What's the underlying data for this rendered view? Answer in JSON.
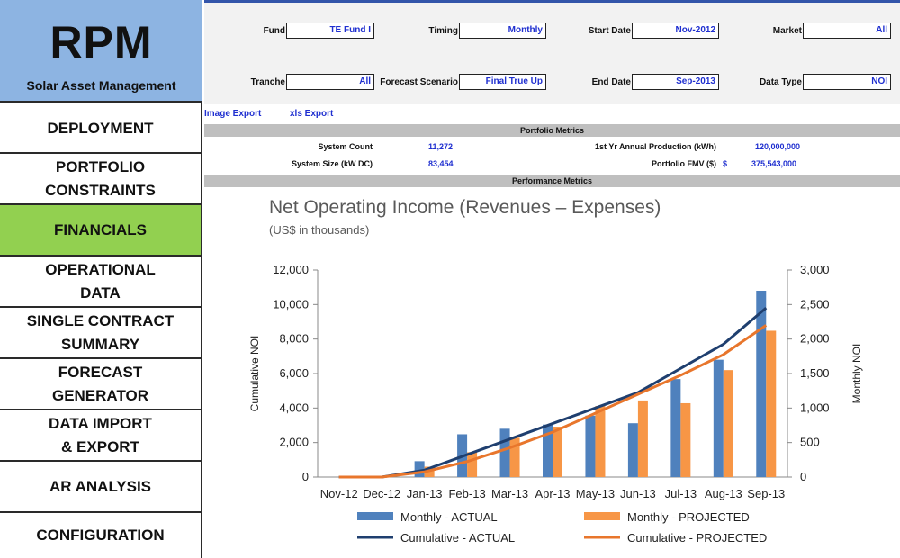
{
  "brand": {
    "title": "RPM",
    "subtitle": "Solar Asset Management"
  },
  "nav": [
    {
      "label": "DEPLOYMENT",
      "active": false
    },
    {
      "label": "PORTFOLIO\nCONSTRAINTS",
      "active": false
    },
    {
      "label": "FINANCIALS",
      "active": true
    },
    {
      "label": "OPERATIONAL\nDATA",
      "active": false
    },
    {
      "label": "SINGLE CONTRACT\nSUMMARY",
      "active": false
    },
    {
      "label": "FORECAST\nGENERATOR",
      "active": false
    },
    {
      "label": "DATA IMPORT\n& EXPORT",
      "active": false
    },
    {
      "label": "AR ANALYSIS",
      "active": false
    },
    {
      "label": "CONFIGURATION",
      "active": false
    }
  ],
  "filters": {
    "fund": {
      "label": "Fund",
      "value": "TE Fund I"
    },
    "timing": {
      "label": "Timing",
      "value": "Monthly"
    },
    "start_date": {
      "label": "Start Date",
      "value": "Nov-2012"
    },
    "market": {
      "label": "Market",
      "value": "All"
    },
    "tranche": {
      "label": "Tranche",
      "value": "All"
    },
    "forecast_scenario": {
      "label": "Forecast Scenario",
      "value": "Final True Up"
    },
    "end_date": {
      "label": "End Date",
      "value": "Sep-2013"
    },
    "data_type": {
      "label": "Data Type",
      "value": "NOI"
    }
  },
  "links": {
    "image_export": "Image Export",
    "xls_export": "xls Export"
  },
  "portfolio_metrics": {
    "header": "Portfolio Metrics",
    "system_count_label": "System Count",
    "system_count": "11,272",
    "system_size_label": "System Size (kW DC)",
    "system_size": "83,454",
    "annual_production_label": "1st Yr Annual Production (kWh)",
    "annual_production": "120,000,000",
    "fmv_label": "Portfolio FMV ($)",
    "fmv_currency": "$",
    "fmv": "375,543,000"
  },
  "performance_metrics": {
    "header": "Performance Metrics"
  },
  "colors": {
    "sidebar_logo": "#8db4e2",
    "active_nav": "#92d050",
    "value_text": "#1f2fd0",
    "actual": "#4f81bd",
    "projected": "#f79646",
    "cumulative_actual": "#1f3f6f",
    "cumulative_projected": "#e8762c"
  },
  "chart_data": {
    "type": "bar",
    "title": "Net Operating Income (Revenues – Expenses)",
    "subtitle": "(US$ in thousands)",
    "categories": [
      "Nov-12",
      "Dec-12",
      "Jan-13",
      "Feb-13",
      "Mar-13",
      "Apr-13",
      "May-13",
      "Jun-13",
      "Jul-13",
      "Aug-13",
      "Sep-13"
    ],
    "ylabel_left": "Cumulative NOI",
    "ylabel_right": "Monthly NOI",
    "ylim_left": [
      0,
      12000
    ],
    "yticks_left": [
      "0",
      "2,000",
      "4,000",
      "6,000",
      "8,000",
      "10,000",
      "12,000"
    ],
    "ylim_right": [
      0,
      3000
    ],
    "yticks_right": [
      "0",
      "500",
      "1,000",
      "1,500",
      "2,000",
      "2,500",
      "3,000"
    ],
    "series": [
      {
        "name": "Monthly - ACTUAL",
        "kind": "bar",
        "axis": "right",
        "values": [
          0,
          0,
          230,
          620,
          700,
          760,
          890,
          780,
          1420,
          1700,
          2700
        ]
      },
      {
        "name": "Monthly - PROJECTED",
        "kind": "bar",
        "axis": "right",
        "values": [
          0,
          0,
          150,
          360,
          570,
          730,
          1030,
          1110,
          1070,
          1550,
          2120
        ]
      },
      {
        "name": "Cumulative - ACTUAL",
        "kind": "line",
        "axis": "left",
        "values": [
          0,
          0,
          400,
          1300,
          2200,
          3100,
          4000,
          4900,
          6300,
          7700,
          9800
        ]
      },
      {
        "name": "Cumulative - PROJECTED",
        "kind": "line",
        "axis": "left",
        "values": [
          0,
          0,
          300,
          900,
          1700,
          2600,
          3700,
          4800,
          5900,
          7100,
          8800
        ]
      }
    ],
    "legend_position": "bottom",
    "grid": false
  }
}
